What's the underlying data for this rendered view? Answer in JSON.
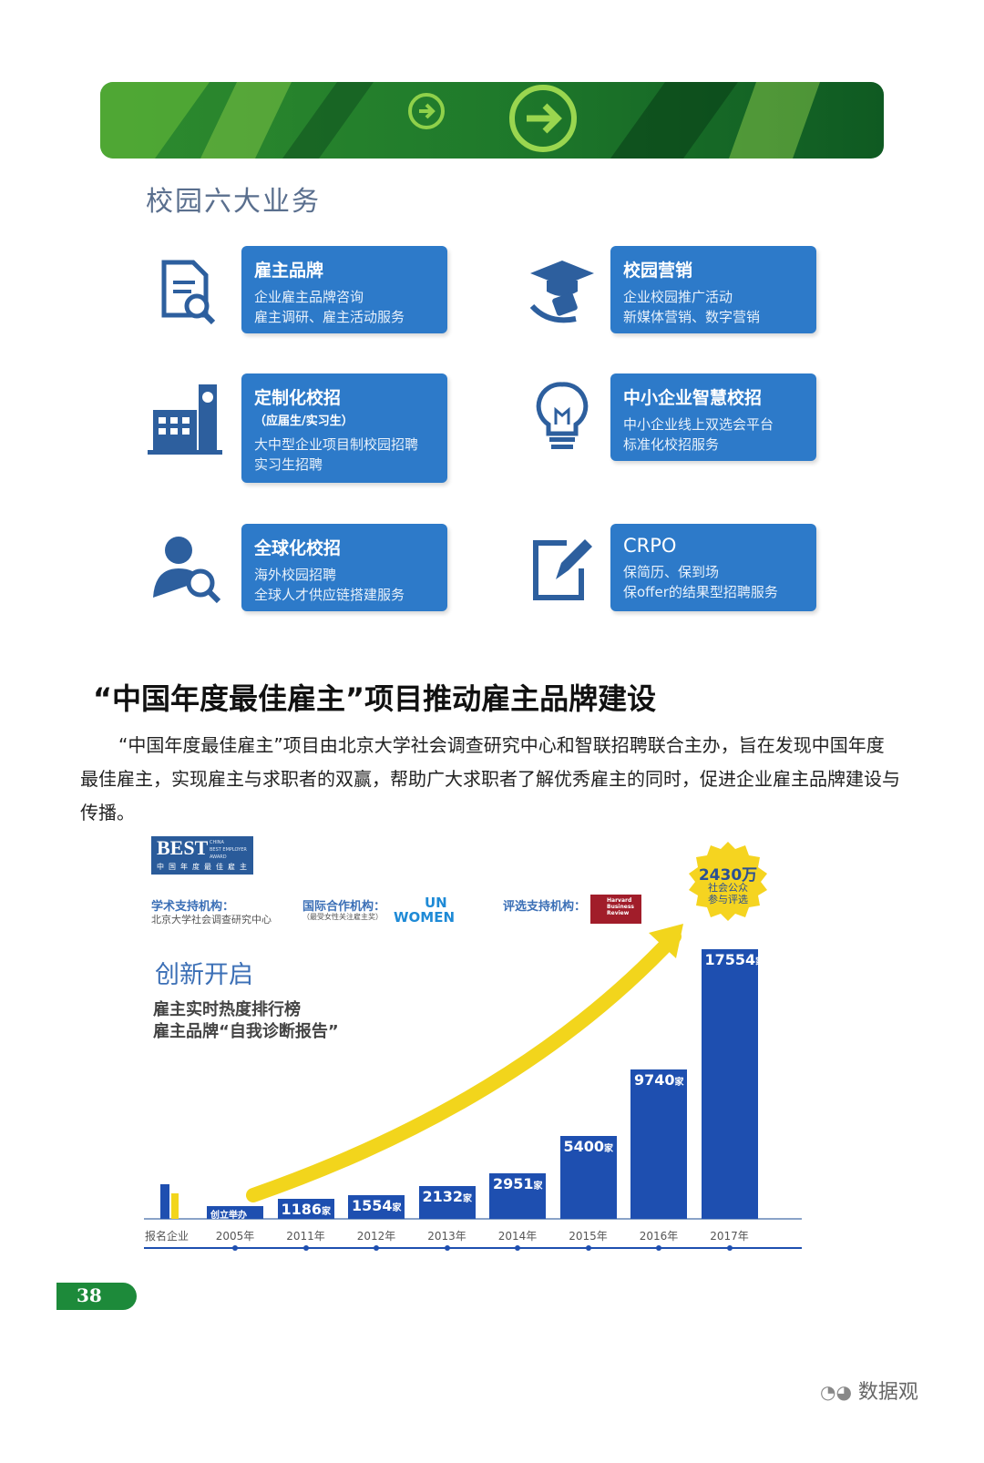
{
  "section_title": "校园六大业务",
  "services": [
    {
      "title": "雇主品牌",
      "title_note": "",
      "lines": [
        "企业雇主品牌咨询",
        "雇主调研、雇主活动服务"
      ],
      "icon": "document-search-icon"
    },
    {
      "title": "校园营销",
      "title_note": "",
      "lines": [
        "企业校园推广活动",
        "新媒体营销、数字营销"
      ],
      "icon": "graduation-cap-icon"
    },
    {
      "title": "定制化校招",
      "title_note": "（应届生/实习生）",
      "lines": [
        "大中型企业项目制校园招聘",
        "实习生招聘"
      ],
      "icon": "building-icon"
    },
    {
      "title": "中小企业智慧校招",
      "title_note": "",
      "lines": [
        "中小企业线上双选会平台",
        "标准化校招服务"
      ],
      "icon": "lightbulb-icon"
    },
    {
      "title": "全球化校招",
      "title_note": "",
      "lines": [
        "海外校园招聘",
        "全球人才供应链搭建服务"
      ],
      "icon": "person-search-icon"
    },
    {
      "title": "CRPO",
      "title_note": "",
      "lines": [
        "保简历、保到场",
        "保offer的结果型招聘服务"
      ],
      "icon": "edit-form-icon"
    }
  ],
  "article": {
    "heading": "“中国年度最佳雇主”项目推动雇主品牌建设",
    "body": "“中国年度最佳雇主”项目由北京大学社会调查研究中心和智联招聘联合主办，旨在发现中国年度最佳雇主，实现雇主与求职者的双赢，帮助广大求职者了解优秀雇主的同时，促进企业雇主品牌建设与传播。"
  },
  "infographic": {
    "logo_main": "BEST",
    "logo_small": [
      "CHINA",
      "BEST EMPLOYER",
      "AWARD"
    ],
    "logo_cn": "中国年度最佳雇主",
    "academic_label": "学术支持机构：",
    "academic_org": "北京大学社会调查研究中心",
    "intl_label": "国际合作机构：",
    "intl_note": "（最受女性关注雇主奖）",
    "intl_logo": [
      "UN",
      "WOMEN"
    ],
    "selection_label": "评选支持机构：",
    "selection_logo": [
      "Harvard",
      "Business",
      "Review"
    ],
    "innov_title": "创新开启",
    "innov_lines": [
      "雇主实时热度排行榜",
      "雇主品牌“自我诊断报告”"
    ],
    "badge_value": "2430万",
    "badge_lines": [
      "社会公众",
      "参与评选"
    ],
    "colors": {
      "bar": "#1e4fb0",
      "arrow": "#f2d51c",
      "badge": "#f5d420",
      "accent": "#3b6fb6"
    }
  },
  "chart_data": {
    "type": "bar",
    "title": "",
    "xlabel": "报名企业",
    "ylabel": "",
    "categories": [
      "2005年",
      "2011年",
      "2012年",
      "2013年",
      "2014年",
      "2015年",
      "2016年",
      "2017年"
    ],
    "values": [
      null,
      1186,
      1554,
      2132,
      2951,
      5400,
      9740,
      17554
    ],
    "bar_labels": [
      "创立举办",
      "1186",
      "1554",
      "2132",
      "2951",
      "5400",
      "9740",
      "17554"
    ],
    "unit": "家",
    "grid": false,
    "legend": "none"
  },
  "footer": {
    "page_number": "38",
    "watermark": "数据观"
  }
}
